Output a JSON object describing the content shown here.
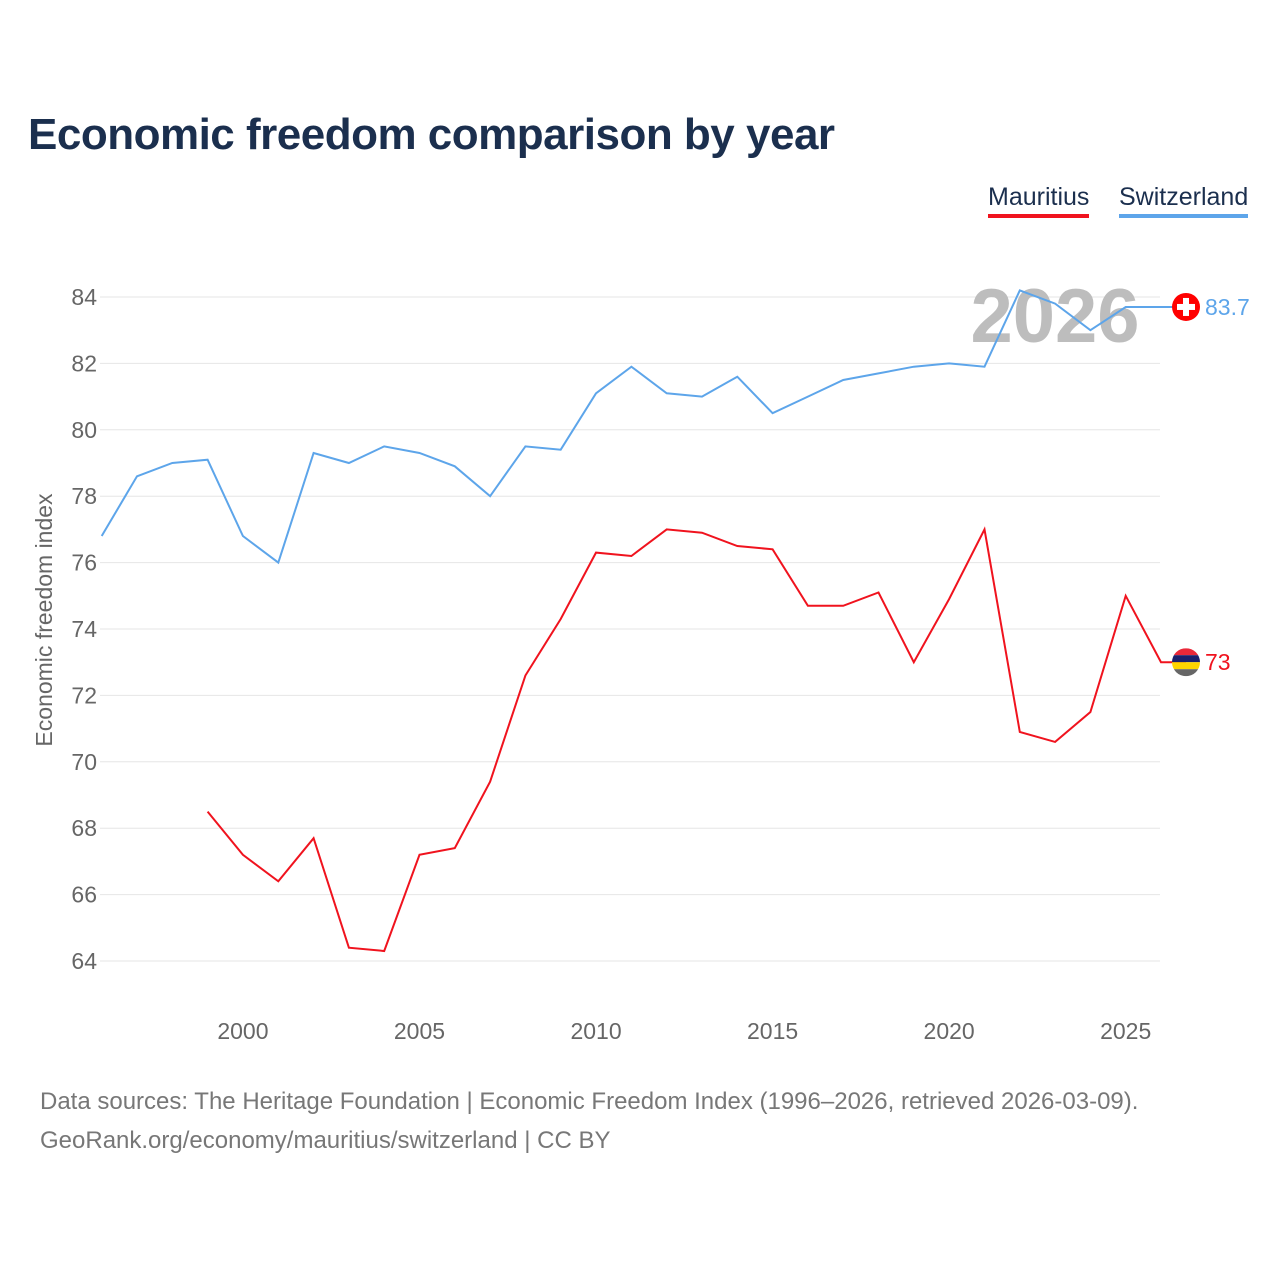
{
  "title": "Economic freedom comparison by year",
  "footer": {
    "line1": "Data sources: The Heritage Foundation | Economic Freedom Index (1996–2026, retrieved 2026-03-09).",
    "line2": "GeoRank.org/economy/mauritius/switzerland | CC BY"
  },
  "chart_data": {
    "type": "line",
    "title": "Economic freedom comparison by year",
    "xlabel": "",
    "ylabel": "Economic freedom index",
    "xlim": [
      1996,
      2026
    ],
    "ylim": [
      63,
      85
    ],
    "xticks": [
      2000,
      2005,
      2010,
      2015,
      2020,
      2025
    ],
    "yticks": [
      64,
      66,
      68,
      70,
      72,
      74,
      76,
      78,
      80,
      82,
      84
    ],
    "grid": true,
    "legend_placement": "top-right",
    "current_year_label": "2026",
    "series": [
      {
        "name": "Mauritius",
        "color": "#f0131e",
        "end_label": "73",
        "x": [
          1999,
          2000,
          2001,
          2002,
          2003,
          2004,
          2005,
          2006,
          2007,
          2008,
          2009,
          2010,
          2011,
          2012,
          2013,
          2014,
          2015,
          2016,
          2017,
          2018,
          2019,
          2020,
          2021,
          2022,
          2023,
          2024,
          2025,
          2026
        ],
        "values": [
          68.5,
          67.2,
          66.4,
          67.7,
          64.4,
          64.3,
          67.2,
          67.4,
          69.4,
          72.6,
          74.3,
          76.3,
          76.2,
          77.0,
          76.9,
          76.5,
          76.4,
          74.7,
          74.7,
          75.1,
          73.0,
          74.9,
          77.0,
          70.9,
          70.6,
          71.5,
          75.0,
          73.0
        ]
      },
      {
        "name": "Switzerland",
        "color": "#5da5ea",
        "end_label": "83.7",
        "x": [
          1996,
          1997,
          1998,
          1999,
          2000,
          2001,
          2002,
          2003,
          2004,
          2005,
          2006,
          2007,
          2008,
          2009,
          2010,
          2011,
          2012,
          2013,
          2014,
          2015,
          2016,
          2017,
          2018,
          2019,
          2020,
          2021,
          2022,
          2023,
          2024,
          2025,
          2026
        ],
        "values": [
          76.8,
          78.6,
          79.0,
          79.1,
          76.8,
          76.0,
          79.3,
          79.0,
          79.5,
          79.3,
          78.9,
          78.0,
          79.5,
          79.4,
          81.1,
          81.9,
          81.1,
          81.0,
          81.6,
          80.5,
          81.0,
          81.5,
          81.7,
          81.9,
          82.0,
          81.9,
          84.2,
          83.8,
          83.0,
          83.7,
          83.7
        ]
      }
    ]
  }
}
